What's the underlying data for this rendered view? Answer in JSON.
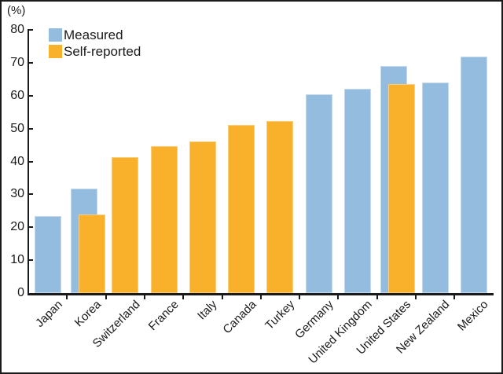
{
  "chart_data": {
    "type": "bar",
    "title": "",
    "unit_label": "(%)",
    "xlabel": "",
    "ylabel": "(%)",
    "ylim": [
      0,
      80
    ],
    "ytick_step": 10,
    "grid": false,
    "legend_position": "top-left",
    "axis_color": "#1a1a1a",
    "categories": [
      "Japan",
      "Korea",
      "Switzerland",
      "France",
      "Italy",
      "Canada",
      "Turkey",
      "Germany",
      "United Kingdom",
      "United States",
      "New Zealand",
      "Mexico"
    ],
    "series": [
      {
        "name": "Measured",
        "color": "#94BCDF",
        "border_color": "#C3D9ED",
        "values": [
          23.4,
          31.8,
          null,
          null,
          null,
          null,
          null,
          60.3,
          62.0,
          68.9,
          64.0,
          71.8
        ]
      },
      {
        "name": "Self-reported",
        "color": "#F9B02B",
        "border_color": "#FBCE7E",
        "values": [
          null,
          24.0,
          41.2,
          44.6,
          46.2,
          51.1,
          52.2,
          null,
          null,
          63.6,
          null,
          null
        ]
      }
    ]
  }
}
